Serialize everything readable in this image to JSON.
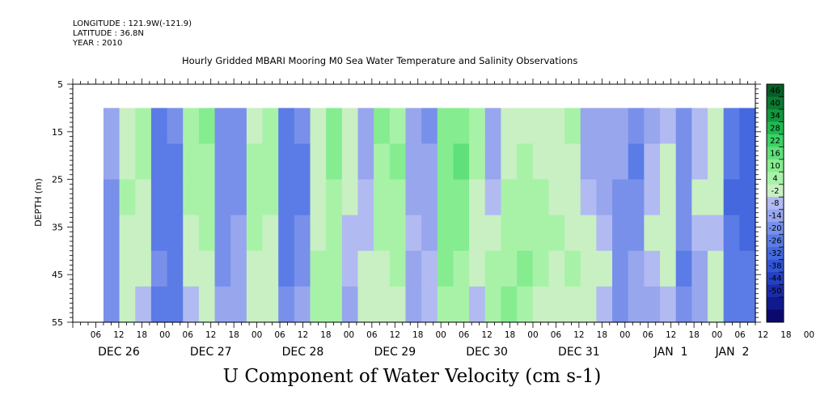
{
  "meta": {
    "longitude": "LONGITUDE : 121.9W(-121.9)",
    "latitude": "LATITUDE : 36.8N",
    "year": "YEAR : 2010"
  },
  "chart_data": {
    "type": "heatmap",
    "title": "Hourly Gridded MBARI Mooring M0 Sea Water Temperature and Salinity Observations",
    "variable_label": "U Component of Water Velocity (cm s-1)",
    "ylabel": "DEPTH (m)",
    "y_range": [
      5,
      55
    ],
    "y_reversed": true,
    "y_ticks": [
      5,
      15,
      25,
      35,
      45,
      55
    ],
    "data_depth_range": [
      10,
      55
    ],
    "x_hour_labels": [
      "06",
      "12",
      "18",
      "00",
      "06",
      "12",
      "18",
      "00",
      "06",
      "12",
      "18",
      "00",
      "06",
      "12",
      "18",
      "00",
      "06",
      "12",
      "18",
      "00",
      "06",
      "12",
      "18",
      "00",
      "06",
      "12",
      "18",
      "00",
      "06",
      "12",
      "18",
      "00"
    ],
    "x_date_labels": [
      "DEC 26",
      "DEC 27",
      "DEC 28",
      "DEC 29",
      "DEC 30",
      "DEC 31",
      "JAN  1",
      "JAN  2"
    ],
    "x_range_hours": [
      0,
      178
    ],
    "data_x_range_hours": [
      8,
      178
    ],
    "colorbar": {
      "levels": [
        -50,
        -44,
        -38,
        -32,
        -26,
        -20,
        -14,
        -8,
        -2,
        4,
        10,
        16,
        22,
        28,
        34,
        40,
        46
      ],
      "tick_labels": [
        "46",
        "40",
        "34",
        "28",
        "22",
        "16",
        "10",
        "4",
        "-2",
        "-8",
        "-14",
        "-20",
        "-26",
        "-32",
        "-38",
        "-44",
        "-50"
      ],
      "colors": [
        "#0a0a6e",
        "#101a8c",
        "#1a2caa",
        "#2540c4",
        "#3355d6",
        "#4568de",
        "#5b7ce6",
        "#7890ea",
        "#98a6ee",
        "#b2baf2",
        "#c8f0c2",
        "#a8f2a8",
        "#86ec90",
        "#5fe07a",
        "#3cd266",
        "#22b850",
        "#14963e",
        "#0c7a32",
        "#085e26"
      ]
    },
    "columns_u": [
      [
        -6,
        -8,
        -10,
        -10,
        -12,
        -12
      ],
      [
        6,
        8,
        10,
        8,
        6,
        4
      ],
      [
        12,
        10,
        8,
        6,
        4,
        2
      ],
      [
        -16,
        -18,
        -18,
        -16,
        -14,
        -18
      ],
      [
        -14,
        -16,
        -18,
        -16,
        -16,
        -20
      ],
      [
        10,
        12,
        10,
        8,
        4,
        2
      ],
      [
        16,
        14,
        12,
        10,
        6,
        4
      ],
      [
        -12,
        -14,
        -14,
        -12,
        -10,
        -8
      ],
      [
        -10,
        -12,
        -10,
        -8,
        -6,
        -4
      ],
      [
        8,
        10,
        12,
        10,
        8,
        6
      ],
      [
        14,
        12,
        10,
        8,
        6,
        6
      ],
      [
        -18,
        -20,
        -20,
        -18,
        -16,
        -14
      ],
      [
        -14,
        -16,
        -16,
        -14,
        -10,
        -8
      ],
      [
        6,
        4,
        6,
        8,
        10,
        12
      ],
      [
        18,
        16,
        14,
        12,
        10,
        10
      ],
      [
        8,
        6,
        4,
        2,
        -2,
        -4
      ],
      [
        -6,
        -4,
        -2,
        2,
        4,
        6
      ],
      [
        16,
        14,
        12,
        10,
        8,
        6
      ],
      [
        14,
        16,
        14,
        12,
        10,
        8
      ],
      [
        -8,
        -6,
        -4,
        -2,
        -4,
        -6
      ],
      [
        -10,
        -8,
        -6,
        -4,
        -2,
        2
      ],
      [
        16,
        18,
        20,
        18,
        16,
        14
      ],
      [
        20,
        22,
        18,
        16,
        14,
        12
      ],
      [
        12,
        10,
        8,
        6,
        4,
        2
      ],
      [
        -6,
        -4,
        2,
        6,
        10,
        14
      ],
      [
        6,
        8,
        10,
        12,
        14,
        16
      ],
      [
        8,
        10,
        12,
        14,
        16,
        12
      ],
      [
        6,
        8,
        10,
        12,
        10,
        8
      ],
      [
        4,
        6,
        8,
        10,
        8,
        6
      ],
      [
        10,
        8,
        6,
        8,
        10,
        8
      ],
      [
        -6,
        -4,
        2,
        6,
        8,
        6
      ],
      [
        -8,
        -6,
        -4,
        2,
        4,
        -2
      ],
      [
        -6,
        -8,
        -10,
        -12,
        -14,
        -12
      ],
      [
        -14,
        -16,
        -12,
        -10,
        -8,
        -6
      ],
      [
        -4,
        -2,
        2,
        4,
        -2,
        -6
      ],
      [
        2,
        4,
        6,
        8,
        6,
        2
      ],
      [
        -10,
        -12,
        -14,
        -14,
        -16,
        -12
      ],
      [
        -2,
        2,
        4,
        -2,
        -6,
        -8
      ],
      [
        6,
        8,
        4,
        2,
        6,
        4
      ],
      [
        -18,
        -20,
        -22,
        -20,
        -18,
        -16
      ],
      [
        -22,
        -24,
        -24,
        -22,
        -20,
        -20
      ]
    ]
  }
}
